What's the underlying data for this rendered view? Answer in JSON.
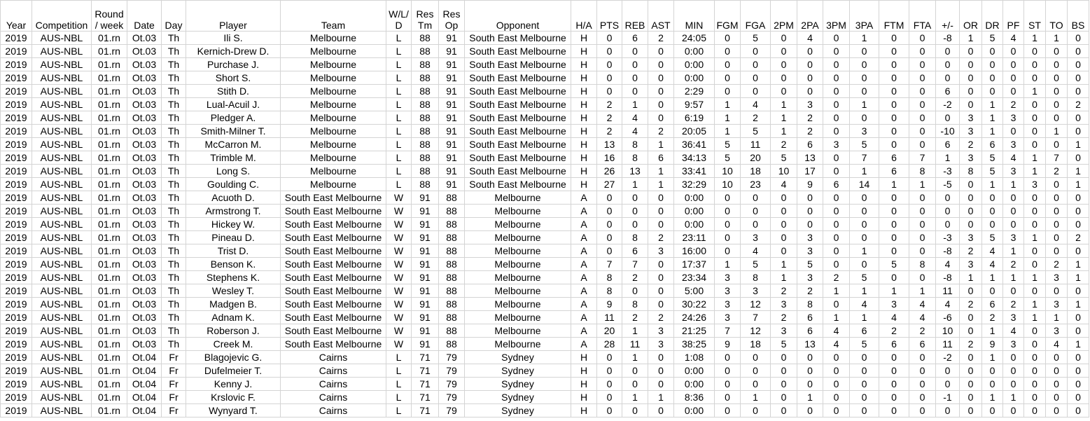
{
  "table": {
    "columns": [
      [
        "Year"
      ],
      [
        "Competition"
      ],
      [
        "Round",
        "/ week"
      ],
      [
        "Date"
      ],
      [
        "Day"
      ],
      [
        "Player"
      ],
      [
        "Team"
      ],
      [
        "W/L/",
        "D"
      ],
      [
        "Res",
        "Tm"
      ],
      [
        "Res",
        "Op"
      ],
      [
        "Opponent"
      ],
      [
        "H/A"
      ],
      [
        "PTS"
      ],
      [
        "REB"
      ],
      [
        "AST"
      ],
      [
        "MIN"
      ],
      [
        "FGM"
      ],
      [
        "FGA"
      ],
      [
        "2PM"
      ],
      [
        "2PA"
      ],
      [
        "3PM"
      ],
      [
        "3PA"
      ],
      [
        "FTM"
      ],
      [
        "FTA"
      ],
      [
        "+/-"
      ],
      [
        "OR"
      ],
      [
        "DR"
      ],
      [
        "PF"
      ],
      [
        "ST"
      ],
      [
        "TO"
      ],
      [
        "BS"
      ]
    ],
    "rows": [
      [
        2019,
        "AUS-NBL",
        "01.rn",
        "Ot.03",
        "Th",
        "Ili S.",
        "Melbourne",
        "L",
        88,
        91,
        "South East Melbourne",
        "H",
        0,
        6,
        2,
        "24:05",
        0,
        5,
        0,
        4,
        0,
        1,
        0,
        0,
        -8,
        1,
        5,
        4,
        1,
        1,
        0
      ],
      [
        2019,
        "AUS-NBL",
        "01.rn",
        "Ot.03",
        "Th",
        "Kernich-Drew D.",
        "Melbourne",
        "L",
        88,
        91,
        "South East Melbourne",
        "H",
        0,
        0,
        0,
        "0:00",
        0,
        0,
        0,
        0,
        0,
        0,
        0,
        0,
        0,
        0,
        0,
        0,
        0,
        0,
        0
      ],
      [
        2019,
        "AUS-NBL",
        "01.rn",
        "Ot.03",
        "Th",
        "Purchase J.",
        "Melbourne",
        "L",
        88,
        91,
        "South East Melbourne",
        "H",
        0,
        0,
        0,
        "0:00",
        0,
        0,
        0,
        0,
        0,
        0,
        0,
        0,
        0,
        0,
        0,
        0,
        0,
        0,
        0
      ],
      [
        2019,
        "AUS-NBL",
        "01.rn",
        "Ot.03",
        "Th",
        "Short S.",
        "Melbourne",
        "L",
        88,
        91,
        "South East Melbourne",
        "H",
        0,
        0,
        0,
        "0:00",
        0,
        0,
        0,
        0,
        0,
        0,
        0,
        0,
        0,
        0,
        0,
        0,
        0,
        0,
        0
      ],
      [
        2019,
        "AUS-NBL",
        "01.rn",
        "Ot.03",
        "Th",
        "Stith D.",
        "Melbourne",
        "L",
        88,
        91,
        "South East Melbourne",
        "H",
        0,
        0,
        0,
        "2:29",
        0,
        0,
        0,
        0,
        0,
        0,
        0,
        0,
        6,
        0,
        0,
        0,
        1,
        0,
        0
      ],
      [
        2019,
        "AUS-NBL",
        "01.rn",
        "Ot.03",
        "Th",
        "Lual-Acuil J.",
        "Melbourne",
        "L",
        88,
        91,
        "South East Melbourne",
        "H",
        2,
        1,
        0,
        "9:57",
        1,
        4,
        1,
        3,
        0,
        1,
        0,
        0,
        -2,
        0,
        1,
        2,
        0,
        0,
        2
      ],
      [
        2019,
        "AUS-NBL",
        "01.rn",
        "Ot.03",
        "Th",
        "Pledger A.",
        "Melbourne",
        "L",
        88,
        91,
        "South East Melbourne",
        "H",
        2,
        4,
        0,
        "6:19",
        1,
        2,
        1,
        2,
        0,
        0,
        0,
        0,
        0,
        3,
        1,
        3,
        0,
        0,
        0
      ],
      [
        2019,
        "AUS-NBL",
        "01.rn",
        "Ot.03",
        "Th",
        "Smith-Milner T.",
        "Melbourne",
        "L",
        88,
        91,
        "South East Melbourne",
        "H",
        2,
        4,
        2,
        "20:05",
        1,
        5,
        1,
        2,
        0,
        3,
        0,
        0,
        -10,
        3,
        1,
        0,
        0,
        1,
        0
      ],
      [
        2019,
        "AUS-NBL",
        "01.rn",
        "Ot.03",
        "Th",
        "McCarron M.",
        "Melbourne",
        "L",
        88,
        91,
        "South East Melbourne",
        "H",
        13,
        8,
        1,
        "36:41",
        5,
        11,
        2,
        6,
        3,
        5,
        0,
        0,
        6,
        2,
        6,
        3,
        0,
        0,
        1
      ],
      [
        2019,
        "AUS-NBL",
        "01.rn",
        "Ot.03",
        "Th",
        "Trimble M.",
        "Melbourne",
        "L",
        88,
        91,
        "South East Melbourne",
        "H",
        16,
        8,
        6,
        "34:13",
        5,
        20,
        5,
        13,
        0,
        7,
        6,
        7,
        1,
        3,
        5,
        4,
        1,
        7,
        0
      ],
      [
        2019,
        "AUS-NBL",
        "01.rn",
        "Ot.03",
        "Th",
        "Long S.",
        "Melbourne",
        "L",
        88,
        91,
        "South East Melbourne",
        "H",
        26,
        13,
        1,
        "33:41",
        10,
        18,
        10,
        17,
        0,
        1,
        6,
        8,
        -3,
        8,
        5,
        3,
        1,
        2,
        1
      ],
      [
        2019,
        "AUS-NBL",
        "01.rn",
        "Ot.03",
        "Th",
        "Goulding C.",
        "Melbourne",
        "L",
        88,
        91,
        "South East Melbourne",
        "H",
        27,
        1,
        1,
        "32:29",
        10,
        23,
        4,
        9,
        6,
        14,
        1,
        1,
        -5,
        0,
        1,
        1,
        3,
        0,
        1
      ],
      [
        2019,
        "AUS-NBL",
        "01.rn",
        "Ot.03",
        "Th",
        "Acuoth D.",
        "South East Melbourne",
        "W",
        91,
        88,
        "Melbourne",
        "A",
        0,
        0,
        0,
        "0:00",
        0,
        0,
        0,
        0,
        0,
        0,
        0,
        0,
        0,
        0,
        0,
        0,
        0,
        0,
        0
      ],
      [
        2019,
        "AUS-NBL",
        "01.rn",
        "Ot.03",
        "Th",
        "Armstrong T.",
        "South East Melbourne",
        "W",
        91,
        88,
        "Melbourne",
        "A",
        0,
        0,
        0,
        "0:00",
        0,
        0,
        0,
        0,
        0,
        0,
        0,
        0,
        0,
        0,
        0,
        0,
        0,
        0,
        0
      ],
      [
        2019,
        "AUS-NBL",
        "01.rn",
        "Ot.03",
        "Th",
        "Hickey W.",
        "South East Melbourne",
        "W",
        91,
        88,
        "Melbourne",
        "A",
        0,
        0,
        0,
        "0:00",
        0,
        0,
        0,
        0,
        0,
        0,
        0,
        0,
        0,
        0,
        0,
        0,
        0,
        0,
        0
      ],
      [
        2019,
        "AUS-NBL",
        "01.rn",
        "Ot.03",
        "Th",
        "Pineau D.",
        "South East Melbourne",
        "W",
        91,
        88,
        "Melbourne",
        "A",
        0,
        8,
        2,
        "23:11",
        0,
        3,
        0,
        3,
        0,
        0,
        0,
        0,
        -3,
        3,
        5,
        3,
        1,
        0,
        2
      ],
      [
        2019,
        "AUS-NBL",
        "01.rn",
        "Ot.03",
        "Th",
        "Trist D.",
        "South East Melbourne",
        "W",
        91,
        88,
        "Melbourne",
        "A",
        0,
        6,
        3,
        "16:00",
        0,
        4,
        0,
        3,
        0,
        1,
        0,
        0,
        -8,
        2,
        4,
        1,
        0,
        0,
        0
      ],
      [
        2019,
        "AUS-NBL",
        "01.rn",
        "Ot.03",
        "Th",
        "Benson K.",
        "South East Melbourne",
        "W",
        91,
        88,
        "Melbourne",
        "A",
        7,
        7,
        0,
        "17:37",
        1,
        5,
        1,
        5,
        0,
        0,
        5,
        8,
        4,
        3,
        4,
        2,
        0,
        2,
        1
      ],
      [
        2019,
        "AUS-NBL",
        "01.rn",
        "Ot.03",
        "Th",
        "Stephens K.",
        "South East Melbourne",
        "W",
        91,
        88,
        "Melbourne",
        "A",
        8,
        2,
        0,
        "23:34",
        3,
        8,
        1,
        3,
        2,
        5,
        0,
        0,
        -8,
        1,
        1,
        1,
        1,
        3,
        1
      ],
      [
        2019,
        "AUS-NBL",
        "01.rn",
        "Ot.03",
        "Th",
        "Wesley T.",
        "South East Melbourne",
        "W",
        91,
        88,
        "Melbourne",
        "A",
        8,
        0,
        0,
        "5:00",
        3,
        3,
        2,
        2,
        1,
        1,
        1,
        1,
        11,
        0,
        0,
        0,
        0,
        0,
        0
      ],
      [
        2019,
        "AUS-NBL",
        "01.rn",
        "Ot.03",
        "Th",
        "Madgen B.",
        "South East Melbourne",
        "W",
        91,
        88,
        "Melbourne",
        "A",
        9,
        8,
        0,
        "30:22",
        3,
        12,
        3,
        8,
        0,
        4,
        3,
        4,
        4,
        2,
        6,
        2,
        1,
        3,
        1
      ],
      [
        2019,
        "AUS-NBL",
        "01.rn",
        "Ot.03",
        "Th",
        "Adnam K.",
        "South East Melbourne",
        "W",
        91,
        88,
        "Melbourne",
        "A",
        11,
        2,
        2,
        "24:26",
        3,
        7,
        2,
        6,
        1,
        1,
        4,
        4,
        -6,
        0,
        2,
        3,
        1,
        1,
        0
      ],
      [
        2019,
        "AUS-NBL",
        "01.rn",
        "Ot.03",
        "Th",
        "Roberson J.",
        "South East Melbourne",
        "W",
        91,
        88,
        "Melbourne",
        "A",
        20,
        1,
        3,
        "21:25",
        7,
        12,
        3,
        6,
        4,
        6,
        2,
        2,
        10,
        0,
        1,
        4,
        0,
        3,
        0
      ],
      [
        2019,
        "AUS-NBL",
        "01.rn",
        "Ot.03",
        "Th",
        "Creek M.",
        "South East Melbourne",
        "W",
        91,
        88,
        "Melbourne",
        "A",
        28,
        11,
        3,
        "38:25",
        9,
        18,
        5,
        13,
        4,
        5,
        6,
        6,
        11,
        2,
        9,
        3,
        0,
        4,
        1
      ],
      [
        2019,
        "AUS-NBL",
        "01.rn",
        "Ot.04",
        "Fr",
        "Blagojevic G.",
        "Cairns",
        "L",
        71,
        79,
        "Sydney",
        "H",
        0,
        1,
        0,
        "1:08",
        0,
        0,
        0,
        0,
        0,
        0,
        0,
        0,
        -2,
        0,
        1,
        0,
        0,
        0,
        0
      ],
      [
        2019,
        "AUS-NBL",
        "01.rn",
        "Ot.04",
        "Fr",
        "Dufelmeier T.",
        "Cairns",
        "L",
        71,
        79,
        "Sydney",
        "H",
        0,
        0,
        0,
        "0:00",
        0,
        0,
        0,
        0,
        0,
        0,
        0,
        0,
        0,
        0,
        0,
        0,
        0,
        0,
        0
      ],
      [
        2019,
        "AUS-NBL",
        "01.rn",
        "Ot.04",
        "Fr",
        "Kenny J.",
        "Cairns",
        "L",
        71,
        79,
        "Sydney",
        "H",
        0,
        0,
        0,
        "0:00",
        0,
        0,
        0,
        0,
        0,
        0,
        0,
        0,
        0,
        0,
        0,
        0,
        0,
        0,
        0
      ],
      [
        2019,
        "AUS-NBL",
        "01.rn",
        "Ot.04",
        "Fr",
        "Krslovic F.",
        "Cairns",
        "L",
        71,
        79,
        "Sydney",
        "H",
        0,
        1,
        1,
        "8:36",
        0,
        1,
        0,
        1,
        0,
        0,
        0,
        0,
        -1,
        0,
        1,
        1,
        0,
        0,
        0
      ],
      [
        2019,
        "AUS-NBL",
        "01.rn",
        "Ot.04",
        "Fr",
        "Wynyard T.",
        "Cairns",
        "L",
        71,
        79,
        "Sydney",
        "H",
        0,
        0,
        0,
        "0:00",
        0,
        0,
        0,
        0,
        0,
        0,
        0,
        0,
        0,
        0,
        0,
        0,
        0,
        0,
        0
      ]
    ]
  }
}
